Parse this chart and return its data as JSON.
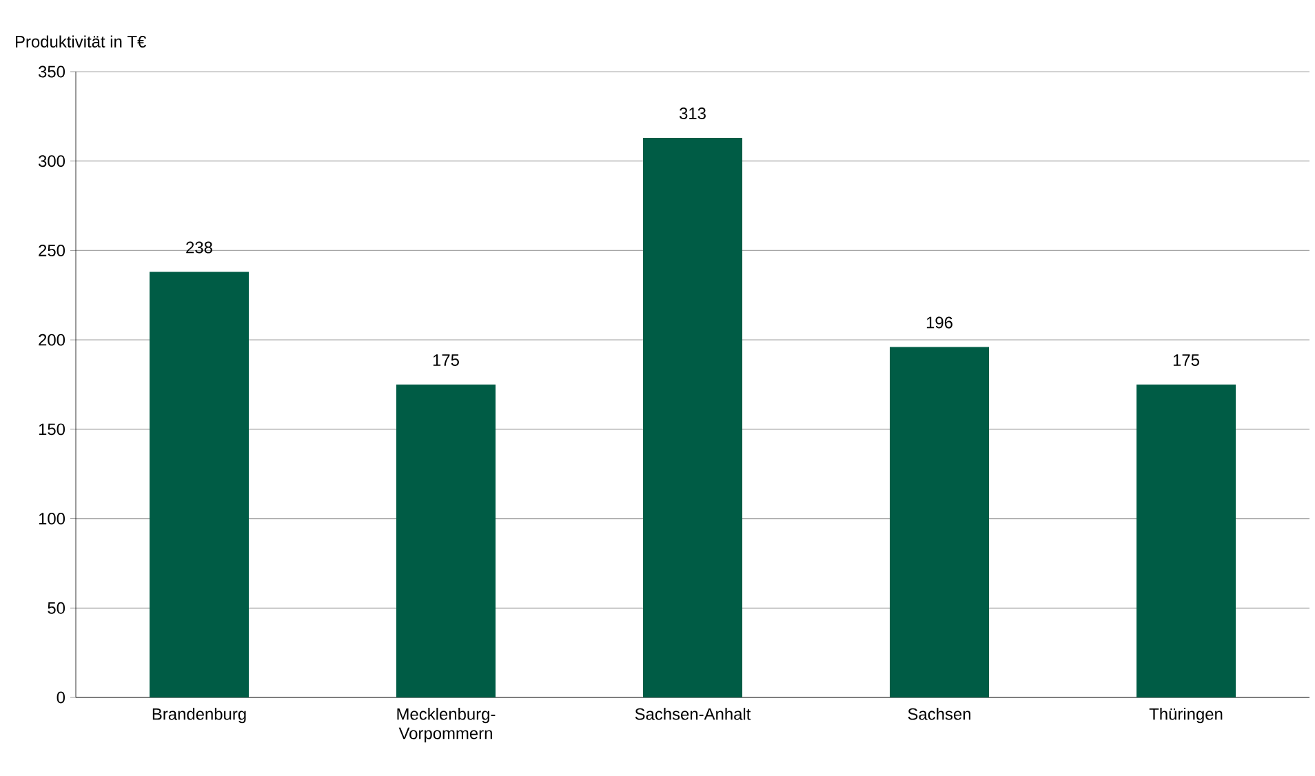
{
  "chart_data": {
    "type": "bar",
    "ylabel": "Produktivität in T€",
    "categories": [
      "Brandenburg",
      "Mecklenburg-Vorpommern",
      "Sachsen-Anhalt",
      "Sachsen",
      "Thüringen"
    ],
    "values": [
      238,
      175,
      313,
      196,
      175
    ],
    "color": "#005c45",
    "data_labels": true,
    "grid": "y",
    "ylim": [
      0,
      350
    ],
    "yticks": [
      0,
      50,
      100,
      150,
      200,
      250,
      300,
      350
    ]
  }
}
